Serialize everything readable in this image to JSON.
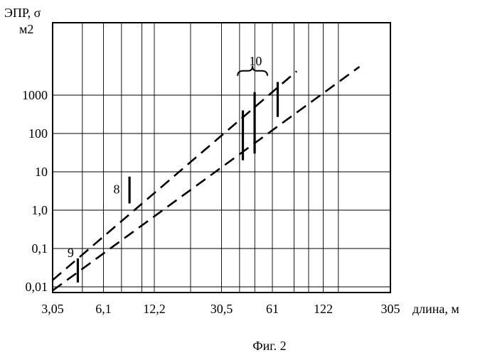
{
  "chart_data": {
    "type": "line",
    "title": "",
    "ylabel": "ЭПР, σ",
    "ylabel_unit": "м2",
    "xlabel": "длина, м",
    "x_scale": "log",
    "y_scale": "log",
    "xlim": [
      3.05,
      305
    ],
    "ylim": [
      0.01,
      10000
    ],
    "grid": true,
    "x_ticks": [
      {
        "value": 3.05,
        "label": "3,05"
      },
      {
        "value": 6.1,
        "label": "6,1"
      },
      {
        "value": 12.2,
        "label": "12,2"
      },
      {
        "value": 30.5,
        "label": "30,5"
      },
      {
        "value": 61,
        "label": "61"
      },
      {
        "value": 122,
        "label": "122"
      },
      {
        "value": 305,
        "label": "305"
      }
    ],
    "x_minor_grid": [
      4.575,
      7.8,
      10.3,
      20,
      39,
      48,
      82,
      100,
      150
    ],
    "y_ticks": [
      {
        "value": 0.01,
        "label": "0,01"
      },
      {
        "value": 0.1,
        "label": "0,1"
      },
      {
        "value": 1,
        "label": "1,0"
      },
      {
        "value": 10,
        "label": "10"
      },
      {
        "value": 100,
        "label": "100"
      },
      {
        "value": 1000,
        "label": "1000"
      }
    ],
    "series": [
      {
        "style": "dashed",
        "x": [
          3.05,
          85
        ],
        "y": [
          0.015,
          4200
        ]
      },
      {
        "style": "dashed",
        "x": [
          3.05,
          200
        ],
        "y": [
          0.008,
          5500
        ]
      }
    ],
    "ranges": [
      {
        "group": "9",
        "x": 4.3,
        "y": [
          0.013,
          0.055
        ]
      },
      {
        "group": "8",
        "x": 8.7,
        "y": [
          1.5,
          7.5
        ]
      },
      {
        "group": "10",
        "x": 40.8,
        "y": [
          20,
          400
        ]
      },
      {
        "group": "10",
        "x": 47.9,
        "y": [
          30,
          1200
        ]
      },
      {
        "group": "10",
        "x": 65.6,
        "y": [
          270,
          2200
        ]
      }
    ],
    "annotations": [
      {
        "text": "8",
        "x": 7.3,
        "y": 3.5
      },
      {
        "text": "9",
        "x": 3.9,
        "y": 0.077
      },
      {
        "text": "10",
        "x": 48.5,
        "y": 7800
      }
    ],
    "brace": {
      "x": [
        38,
        57
      ],
      "y": 4300
    }
  },
  "caption": "Фиг. 2"
}
